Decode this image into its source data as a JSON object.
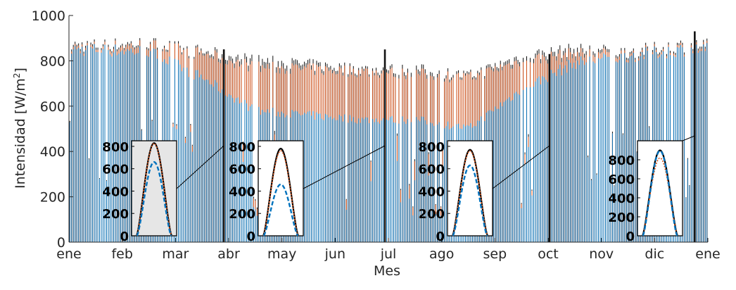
{
  "chart_data": {
    "type": "bar",
    "xlabel": "Mes",
    "ylabel": "Intensidad [W/m",
    "ylabel_sup": "2",
    "ylabel_end": "]",
    "ylim": [
      0,
      1000
    ],
    "yticks": [
      "0",
      "200",
      "400",
      "600",
      "800",
      "1000"
    ],
    "xticks": [
      "ene",
      "feb",
      "mar",
      "abr",
      "may",
      "jun",
      "jul",
      "ago",
      "sep",
      "oct",
      "nov",
      "dic",
      "ene"
    ],
    "grid": false,
    "series": [
      {
        "color": "#000000"
      },
      {
        "color": "#d95319"
      },
      {
        "color": "#0072bd"
      }
    ],
    "monthly_envelope": {
      "months": [
        "ene",
        "feb",
        "mar",
        "abr",
        "may",
        "jun",
        "jul",
        "ago",
        "sep",
        "oct",
        "nov",
        "dic"
      ],
      "black_peak": [
        900,
        910,
        870,
        830,
        810,
        790,
        790,
        760,
        850,
        880,
        870,
        900
      ],
      "orange_peak": [
        890,
        900,
        860,
        800,
        790,
        780,
        770,
        750,
        830,
        860,
        860,
        890
      ],
      "blue_peak": [
        880,
        870,
        750,
        600,
        580,
        560,
        560,
        520,
        700,
        820,
        850,
        880
      ]
    },
    "insets": [
      {
        "day_month": "abr",
        "yticks": [
          "0",
          "200",
          "400",
          "600",
          "800"
        ],
        "ylim": [
          0,
          850
        ],
        "black_peak": 830,
        "orange_peak": 825,
        "blue_peak": 660,
        "shaded": true
      },
      {
        "day_month": "jul",
        "yticks": [
          "0",
          "200",
          "400",
          "600",
          "800"
        ],
        "ylim": [
          0,
          850
        ],
        "black_peak": 780,
        "orange_peak": 760,
        "blue_peak": 460,
        "shaded": false
      },
      {
        "day_month": "oct",
        "yticks": [
          "0",
          "200",
          "400",
          "600",
          "800"
        ],
        "ylim": [
          0,
          850
        ],
        "black_peak": 770,
        "orange_peak": 760,
        "blue_peak": 630,
        "shaded": false
      },
      {
        "day_month": "ene",
        "yticks": [
          "0",
          "200",
          "400",
          "600",
          "800"
        ],
        "ylim": [
          0,
          1000
        ],
        "black_peak": 900,
        "orange_peak": 820,
        "blue_peak": 895,
        "shaded": false
      }
    ]
  }
}
